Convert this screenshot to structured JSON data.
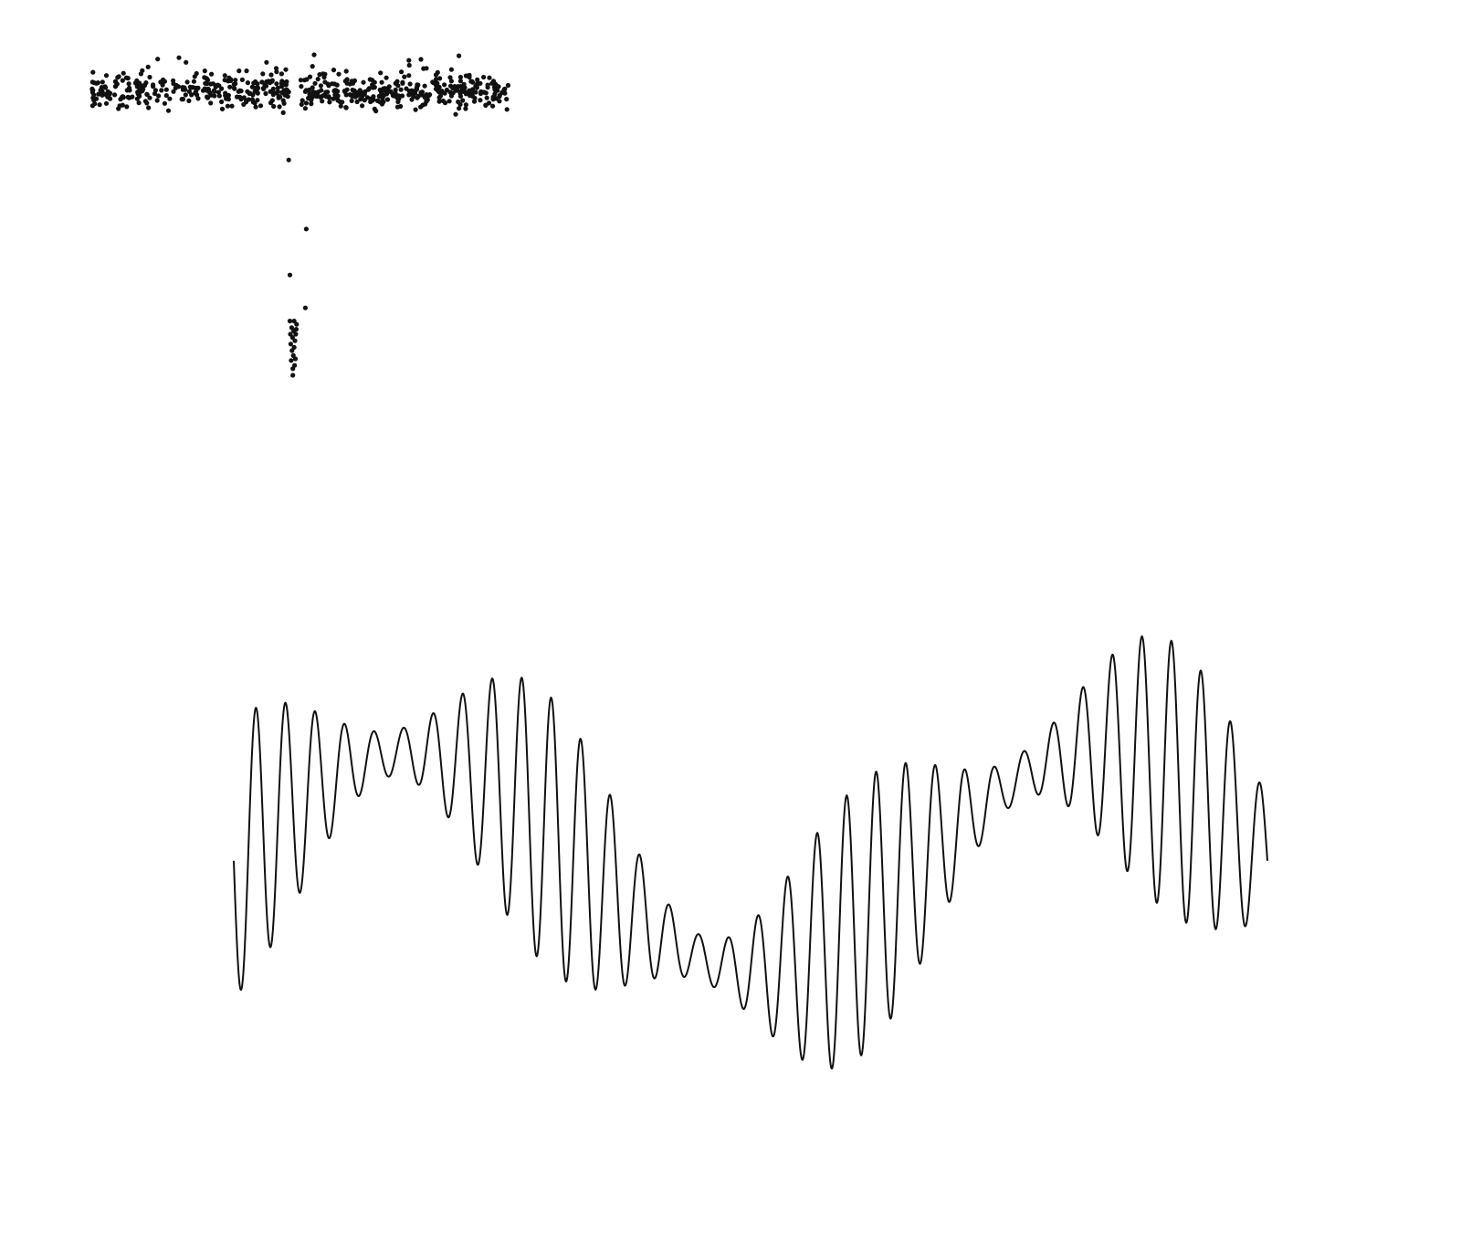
{
  "colors": {
    "background": "#ffffff",
    "ink": "#111111"
  },
  "chart_data": [
    {
      "type": "scatter",
      "title": "",
      "xlabel": "",
      "ylabel": "",
      "axes_visible": false,
      "grid": false,
      "xlim": [
        0,
        1
      ],
      "ylim": [
        0,
        1
      ],
      "color": "#111111",
      "transit": {
        "center": 0.495,
        "half_width": 0.03,
        "baseline": 0.89,
        "depth": 0.5,
        "noise": 0.06
      },
      "points": []
    },
    {
      "type": "line",
      "title": "",
      "xlabel": "",
      "ylabel": "",
      "axes_visible": false,
      "grid": false,
      "xlim": [
        0,
        1
      ],
      "ylim": [
        -1,
        1.05
      ],
      "color": "#111111",
      "carrier_cycles": 35,
      "trend_cycles": 1.5,
      "trend_amplitude": 0.38,
      "envelope": {
        "mean": 0.28,
        "amplitude": 0.2,
        "cycles": 3.3,
        "phase": 0.0
      },
      "points": []
    }
  ]
}
